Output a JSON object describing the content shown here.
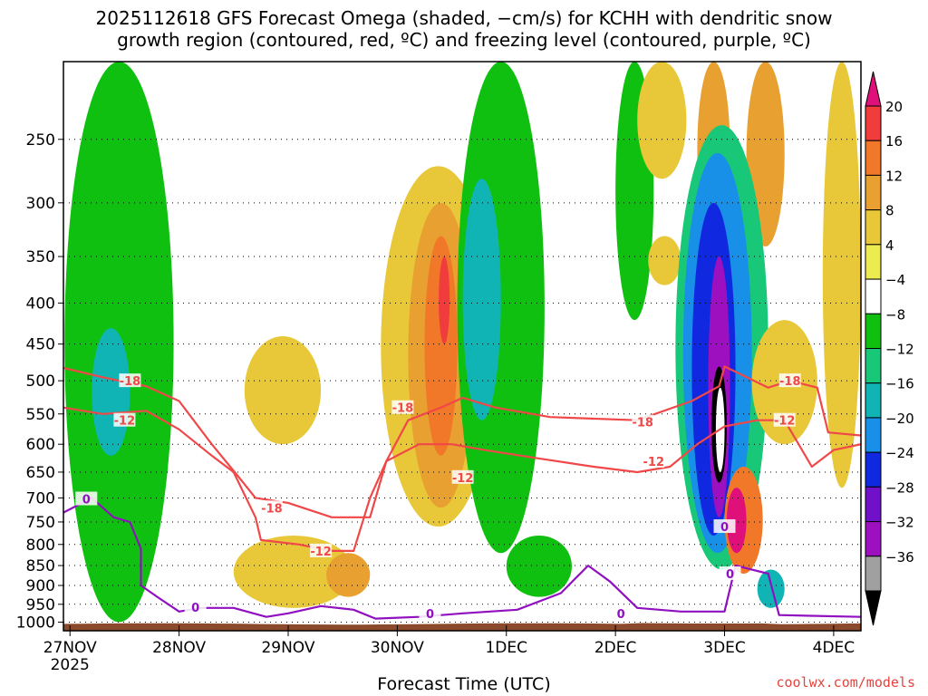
{
  "title_line1": "2025112618 GFS Forecast Omega (shaded, −cm/s) for KCHH with dendritic snow",
  "title_line2": "growth region (contoured, red, ºC) and freezing level (contoured, purple, ºC)",
  "x_axis_label": "Forecast Time (UTC)",
  "credit": "coolwx.com/models",
  "chart_data": {
    "type": "heatmap",
    "x_ticks": [
      "27NOV",
      "28NOV",
      "29NOV",
      "30NOV",
      "1DEC",
      "2DEC",
      "3DEC",
      "4DEC"
    ],
    "x_ticks_sub": [
      "2025",
      "",
      "",
      "",
      "",
      "",
      "",
      ""
    ],
    "x_range_days": [
      -0.06,
      7.25
    ],
    "y_ticks": [
      250,
      300,
      350,
      400,
      450,
      500,
      550,
      600,
      650,
      700,
      750,
      800,
      850,
      900,
      950,
      1000
    ],
    "y_range_hpa": [
      200,
      1025
    ],
    "colorbar": {
      "labels": [
        "20",
        "16",
        "12",
        "8",
        "4",
        "−4",
        "−8",
        "−12",
        "−16",
        "−20",
        "−24",
        "−28",
        "−32",
        "−36"
      ],
      "colors": [
        "#e0107a",
        "#f03c3c",
        "#f07828",
        "#e8a030",
        "#e8c838",
        "#ecec50",
        "#ffffff",
        "#10c010",
        "#18c878",
        "#10b4b4",
        "#1890e8",
        "#1028e0",
        "#7010c8",
        "#9c10c0",
        "#a0a0a0",
        "#000000"
      ]
    },
    "omega_features": [
      {
        "t0": -0.05,
        "t1": 0.95,
        "p0": 200,
        "p1": 1000,
        "level": -6
      },
      {
        "t0": 0.2,
        "t1": 0.55,
        "p0": 430,
        "p1": 620,
        "level": -12
      },
      {
        "t0": 1.6,
        "t1": 2.3,
        "p0": 440,
        "p1": 600,
        "level": 6
      },
      {
        "t0": 2.85,
        "t1": 3.9,
        "p0": 270,
        "p1": 760,
        "level": 6
      },
      {
        "t0": 3.1,
        "t1": 3.7,
        "p0": 300,
        "p1": 720,
        "level": 10
      },
      {
        "t0": 3.25,
        "t1": 3.55,
        "p0": 330,
        "p1": 620,
        "level": 14
      },
      {
        "t0": 3.38,
        "t1": 3.48,
        "p0": 350,
        "p1": 450,
        "level": 17
      },
      {
        "t0": 3.55,
        "t1": 4.35,
        "p0": 200,
        "p1": 820,
        "level": -6
      },
      {
        "t0": 3.6,
        "t1": 3.95,
        "p0": 280,
        "p1": 560,
        "level": -12
      },
      {
        "t0": 4.0,
        "t1": 4.6,
        "p0": 780,
        "p1": 930,
        "level": -6
      },
      {
        "t0": 1.5,
        "t1": 2.6,
        "p0": 780,
        "p1": 960,
        "level": 6
      },
      {
        "t0": 2.35,
        "t1": 2.75,
        "p0": 820,
        "p1": 930,
        "level": 10
      },
      {
        "t0": 5.0,
        "t1": 5.35,
        "p0": 200,
        "p1": 420,
        "level": -6
      },
      {
        "t0": 5.2,
        "t1": 5.65,
        "p0": 200,
        "p1": 280,
        "level": 6
      },
      {
        "t0": 5.75,
        "t1": 6.05,
        "p0": 200,
        "p1": 330,
        "level": 10
      },
      {
        "t0": 6.2,
        "t1": 6.55,
        "p0": 200,
        "p1": 340,
        "level": 8
      },
      {
        "t0": 5.3,
        "t1": 5.6,
        "p0": 330,
        "p1": 380,
        "level": 6
      },
      {
        "t0": 5.55,
        "t1": 6.4,
        "p0": 240,
        "p1": 860,
        "level": -10
      },
      {
        "t0": 5.62,
        "t1": 6.25,
        "p0": 260,
        "p1": 820,
        "level": -16
      },
      {
        "t0": 5.7,
        "t1": 6.1,
        "p0": 300,
        "p1": 780,
        "level": -22
      },
      {
        "t0": 5.85,
        "t1": 6.05,
        "p0": 350,
        "p1": 740,
        "level": -30
      },
      {
        "t0": 5.88,
        "t1": 6.02,
        "p0": 480,
        "p1": 670,
        "level": -38
      },
      {
        "t0": 5.92,
        "t1": 6.0,
        "p0": 510,
        "p1": 650,
        "level": 0
      },
      {
        "t0": 6.0,
        "t1": 6.35,
        "p0": 640,
        "p1": 870,
        "level": 14
      },
      {
        "t0": 6.02,
        "t1": 6.2,
        "p0": 680,
        "p1": 820,
        "level": 20
      },
      {
        "t0": 6.25,
        "t1": 6.85,
        "p0": 420,
        "p1": 600,
        "level": 6
      },
      {
        "t0": 6.9,
        "t1": 7.25,
        "p0": 200,
        "p1": 680,
        "level": 6
      },
      {
        "t0": 6.3,
        "t1": 6.55,
        "p0": 860,
        "p1": 960,
        "level": -12
      }
    ],
    "contours": [
      {
        "label": "-18",
        "color": "#f04848",
        "points": [
          [
            -0.06,
            482
          ],
          [
            0.3,
            495
          ],
          [
            0.7,
            508
          ],
          [
            1.0,
            530
          ],
          [
            1.3,
            600
          ],
          [
            1.55,
            660
          ],
          [
            1.7,
            700
          ],
          [
            2.0,
            710
          ],
          [
            2.4,
            740
          ],
          [
            2.75,
            740
          ],
          [
            2.9,
            630
          ],
          [
            3.1,
            560
          ],
          [
            3.4,
            540
          ],
          [
            3.6,
            525
          ],
          [
            3.9,
            540
          ],
          [
            4.4,
            555
          ],
          [
            5.2,
            560
          ],
          [
            5.7,
            530
          ],
          [
            5.95,
            508
          ],
          [
            6.0,
            480
          ],
          [
            6.4,
            510
          ],
          [
            6.6,
            500
          ],
          [
            6.85,
            510
          ],
          [
            6.95,
            580
          ],
          [
            7.25,
            585
          ]
        ],
        "labels_at": [
          [
            0.55,
            500
          ],
          [
            1.85,
            720
          ],
          [
            3.05,
            540
          ],
          [
            5.25,
            563
          ],
          [
            6.6,
            500
          ]
        ]
      },
      {
        "label": "-12",
        "color": "#f04848",
        "points": [
          [
            -0.06,
            540
          ],
          [
            0.3,
            550
          ],
          [
            0.7,
            545
          ],
          [
            1.0,
            575
          ],
          [
            1.3,
            620
          ],
          [
            1.5,
            650
          ],
          [
            1.7,
            740
          ],
          [
            1.75,
            790
          ],
          [
            2.1,
            800
          ],
          [
            2.4,
            815
          ],
          [
            2.6,
            815
          ],
          [
            2.75,
            700
          ],
          [
            2.9,
            630
          ],
          [
            3.2,
            600
          ],
          [
            3.5,
            600
          ],
          [
            3.8,
            610
          ],
          [
            4.3,
            625
          ],
          [
            4.8,
            640
          ],
          [
            5.2,
            650
          ],
          [
            5.5,
            640
          ],
          [
            5.75,
            600
          ],
          [
            6.0,
            570
          ],
          [
            6.3,
            560
          ],
          [
            6.55,
            560
          ],
          [
            6.8,
            640
          ],
          [
            7.0,
            610
          ],
          [
            7.25,
            600
          ]
        ],
        "labels_at": [
          [
            0.5,
            560
          ],
          [
            2.3,
            815
          ],
          [
            3.6,
            660
          ],
          [
            5.35,
            630
          ],
          [
            6.55,
            560
          ]
        ]
      },
      {
        "label": "0",
        "color": "#9010c0",
        "points": [
          [
            -0.06,
            730
          ],
          [
            0.2,
            700
          ],
          [
            0.4,
            740
          ],
          [
            0.55,
            750
          ],
          [
            0.65,
            810
          ],
          [
            0.65,
            900
          ],
          [
            0.8,
            930
          ],
          [
            1.0,
            970
          ],
          [
            1.2,
            960
          ],
          [
            1.5,
            960
          ],
          [
            1.8,
            985
          ],
          [
            2.0,
            975
          ],
          [
            2.3,
            955
          ],
          [
            2.6,
            965
          ],
          [
            2.8,
            990
          ],
          [
            3.2,
            985
          ],
          [
            3.6,
            975
          ],
          [
            4.1,
            965
          ],
          [
            4.5,
            920
          ],
          [
            4.75,
            850
          ],
          [
            4.95,
            890
          ],
          [
            5.2,
            960
          ],
          [
            5.6,
            970
          ],
          [
            6.0,
            970
          ],
          [
            6.1,
            850
          ],
          [
            6.4,
            870
          ],
          [
            6.5,
            980
          ],
          [
            7.25,
            985
          ]
        ],
        "labels_at": [
          [
            0.15,
            702
          ],
          [
            1.15,
            958
          ],
          [
            3.3,
            975
          ],
          [
            5.05,
            975
          ],
          [
            6.0,
            760
          ],
          [
            6.05,
            870
          ]
        ]
      }
    ]
  }
}
